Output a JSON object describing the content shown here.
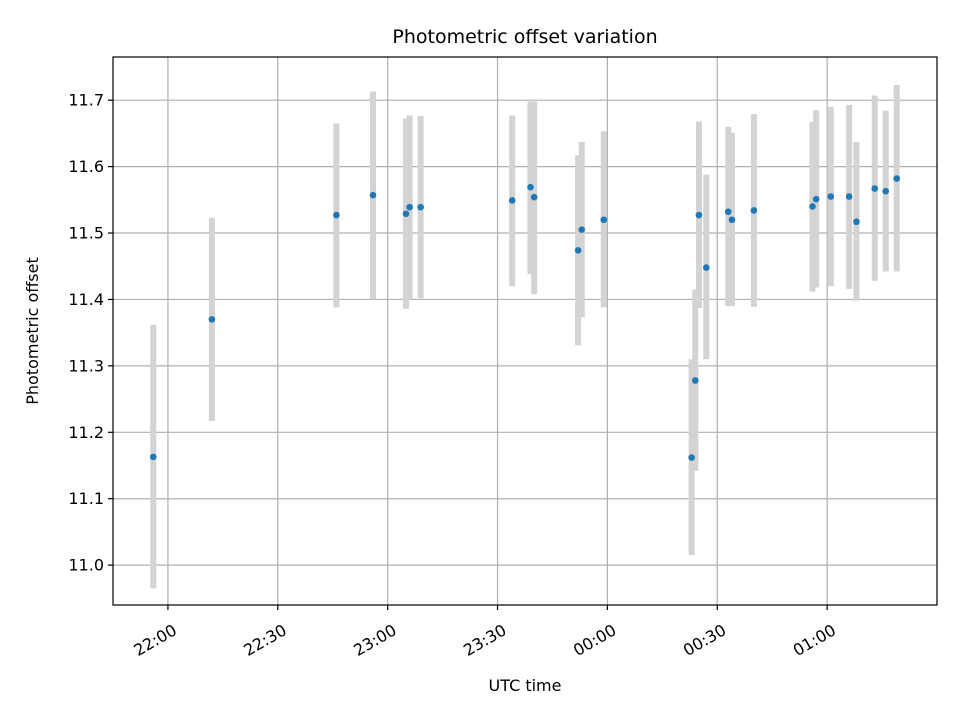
{
  "chart_data": {
    "type": "scatter",
    "title": "Photometric offset variation",
    "xlabel": "UTC time",
    "ylabel": "Photometric offset",
    "x_axis_kind": "time",
    "xlim": [
      "21:45",
      "01:30"
    ],
    "ylim": [
      10.94,
      11.765
    ],
    "grid": true,
    "xticks": [
      "22:00",
      "22:30",
      "23:00",
      "23:30",
      "00:00",
      "00:30",
      "01:00"
    ],
    "yticks": [
      11.0,
      11.1,
      11.2,
      11.3,
      11.4,
      11.5,
      11.6,
      11.7
    ],
    "point_color": "#1f77b4",
    "errorbar_color": "#d3d3d3",
    "points": [
      {
        "t": "21:56",
        "y": 11.163,
        "low": 10.965,
        "high": 11.362
      },
      {
        "t": "22:12",
        "y": 11.37,
        "low": 11.217,
        "high": 11.523
      },
      {
        "t": "22:46",
        "y": 11.527,
        "low": 11.388,
        "high": 11.665
      },
      {
        "t": "22:56",
        "y": 11.557,
        "low": 11.4,
        "high": 11.713
      },
      {
        "t": "23:05",
        "y": 11.529,
        "low": 11.386,
        "high": 11.672
      },
      {
        "t": "23:06",
        "y": 11.539,
        "low": 11.4,
        "high": 11.677
      },
      {
        "t": "23:09",
        "y": 11.539,
        "low": 11.402,
        "high": 11.676
      },
      {
        "t": "23:34",
        "y": 11.549,
        "low": 11.42,
        "high": 11.677
      },
      {
        "t": "23:39",
        "y": 11.569,
        "low": 11.438,
        "high": 11.698
      },
      {
        "t": "23:40",
        "y": 11.554,
        "low": 11.408,
        "high": 11.698
      },
      {
        "t": "23:52",
        "y": 11.474,
        "low": 11.331,
        "high": 11.617
      },
      {
        "t": "23:53",
        "y": 11.505,
        "low": 11.373,
        "high": 11.637
      },
      {
        "t": "23:59",
        "y": 11.52,
        "low": 11.388,
        "high": 11.653
      },
      {
        "t": "00:23",
        "y": 11.162,
        "low": 11.015,
        "high": 11.31
      },
      {
        "t": "00:24",
        "y": 11.278,
        "low": 11.142,
        "high": 11.415
      },
      {
        "t": "00:25",
        "y": 11.527,
        "low": 11.387,
        "high": 11.668
      },
      {
        "t": "00:27",
        "y": 11.448,
        "low": 11.31,
        "high": 11.588
      },
      {
        "t": "00:33",
        "y": 11.532,
        "low": 11.39,
        "high": 11.66
      },
      {
        "t": "00:34",
        "y": 11.52,
        "low": 11.39,
        "high": 11.651
      },
      {
        "t": "00:40",
        "y": 11.534,
        "low": 11.389,
        "high": 11.679
      },
      {
        "t": "00:56",
        "y": 11.54,
        "low": 11.412,
        "high": 11.667
      },
      {
        "t": "00:57",
        "y": 11.551,
        "low": 11.418,
        "high": 11.685
      },
      {
        "t": "01:01",
        "y": 11.555,
        "low": 11.42,
        "high": 11.69
      },
      {
        "t": "01:06",
        "y": 11.555,
        "low": 11.416,
        "high": 11.693
      },
      {
        "t": "01:08",
        "y": 11.517,
        "low": 11.398,
        "high": 11.637
      },
      {
        "t": "01:13",
        "y": 11.567,
        "low": 11.428,
        "high": 11.707
      },
      {
        "t": "01:16",
        "y": 11.563,
        "low": 11.442,
        "high": 11.684
      },
      {
        "t": "01:19",
        "y": 11.582,
        "low": 11.442,
        "high": 11.723
      }
    ]
  }
}
